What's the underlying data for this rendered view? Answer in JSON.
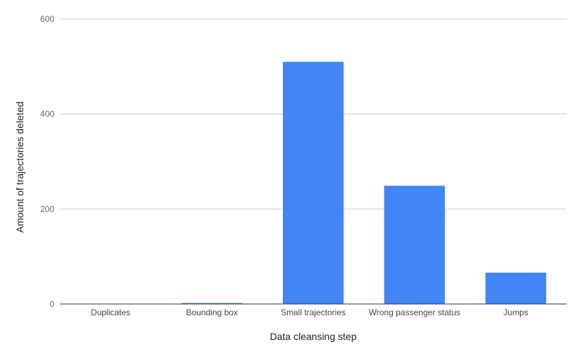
{
  "chart_data": {
    "type": "bar",
    "title": "",
    "xlabel": "Data cleansing step",
    "ylabel": "Amount of trajectories deleted",
    "categories": [
      "Duplicates",
      "Bounding box",
      "Small trajectories",
      "Wrong passenger status",
      "Jumps"
    ],
    "values": [
      0,
      2,
      510,
      249,
      66
    ],
    "ylim": [
      0,
      600
    ],
    "yticks": [
      0,
      200,
      400,
      600
    ],
    "grid": true,
    "legend": "none",
    "bar_color": "#4285f4"
  }
}
